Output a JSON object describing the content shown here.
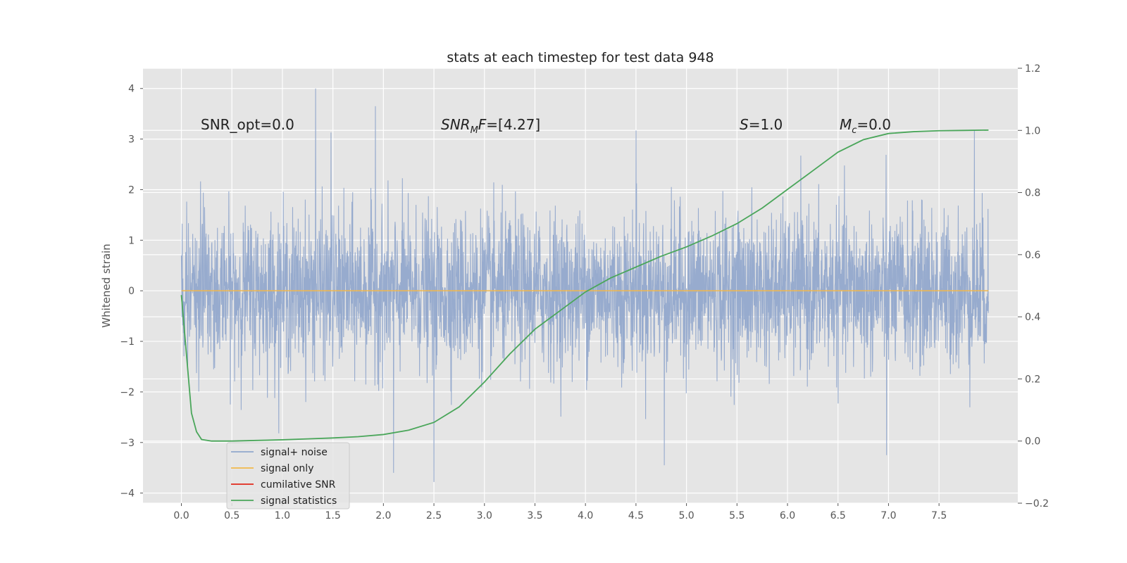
{
  "chart_data": {
    "type": "line",
    "title": "stats at each timestep for test data 948",
    "xlabel": "",
    "ylabel": "Whitened strain",
    "xlim": [
      -0.38,
      8.28
    ],
    "ylim": [
      -4.2,
      4.4
    ],
    "y2lim": [
      -0.2,
      1.2
    ],
    "xticks": [
      "0.0",
      "0.5",
      "1.0",
      "1.5",
      "2.0",
      "2.5",
      "3.0",
      "3.5",
      "4.0",
      "4.5",
      "5.0",
      "5.5",
      "6.0",
      "6.5",
      "7.0",
      "7.5"
    ],
    "yticks": [
      "4",
      "3",
      "2",
      "1",
      "0",
      "−1",
      "−2",
      "−3",
      "−4"
    ],
    "y2ticks": [
      "1.2",
      "1.0",
      "0.8",
      "0.6",
      "0.4",
      "0.2",
      "0.0",
      "−0.2"
    ],
    "grid": true,
    "legend_placement": "lower-left",
    "annotations": {
      "snr_opt": "SNR_opt=0.0",
      "snr_mf_base": "SNR",
      "snr_mf_sub": "M",
      "snr_mf_rest": "F=[4.27]",
      "s_italic": "S",
      "s_rest": "=1.0",
      "mc_base": "M",
      "mc_sub": "c",
      "mc_rest": "=0.0"
    },
    "series": [
      {
        "name": "signal+ noise",
        "color": "#92a8cc",
        "axis": "left",
        "x_range": [
          0.0,
          7.99
        ],
        "noise_sigma": 0.75,
        "notable_peaks": [
          [
            1.33,
            4.0
          ],
          [
            1.92,
            3.65
          ],
          [
            1.48,
            3.13
          ],
          [
            4.5,
            3.17
          ],
          [
            7.85,
            3.18
          ],
          [
            2.5,
            -3.78
          ],
          [
            2.1,
            -3.6
          ],
          [
            4.78,
            -3.45
          ],
          [
            6.98,
            -3.25
          ]
        ]
      },
      {
        "name": "signal only",
        "color": "#f2b84b",
        "axis": "left",
        "x": [
          0.0,
          7.99
        ],
        "y": [
          0.0,
          0.0
        ]
      },
      {
        "name": "cumilative SNR",
        "color": "#e2281b",
        "axis": "left",
        "x": [],
        "y": []
      },
      {
        "name": "signal statistics",
        "color": "#4aa65a",
        "axis": "right",
        "x": [
          0.0,
          0.05,
          0.1,
          0.15,
          0.2,
          0.3,
          0.5,
          0.75,
          1.0,
          1.25,
          1.5,
          1.75,
          2.0,
          2.25,
          2.5,
          2.75,
          3.0,
          3.25,
          3.5,
          3.75,
          4.0,
          4.25,
          4.5,
          4.75,
          5.0,
          5.25,
          5.5,
          5.75,
          6.0,
          6.25,
          6.5,
          6.75,
          7.0,
          7.25,
          7.5,
          7.75,
          7.99
        ],
        "y": [
          0.47,
          0.28,
          0.09,
          0.03,
          0.005,
          0.0,
          0.0,
          0.002,
          0.004,
          0.007,
          0.01,
          0.014,
          0.021,
          0.035,
          0.06,
          0.11,
          0.19,
          0.28,
          0.36,
          0.42,
          0.48,
          0.525,
          0.56,
          0.595,
          0.625,
          0.66,
          0.7,
          0.75,
          0.81,
          0.87,
          0.93,
          0.97,
          0.99,
          0.996,
          0.999,
          1.0,
          1.001
        ]
      }
    ]
  }
}
